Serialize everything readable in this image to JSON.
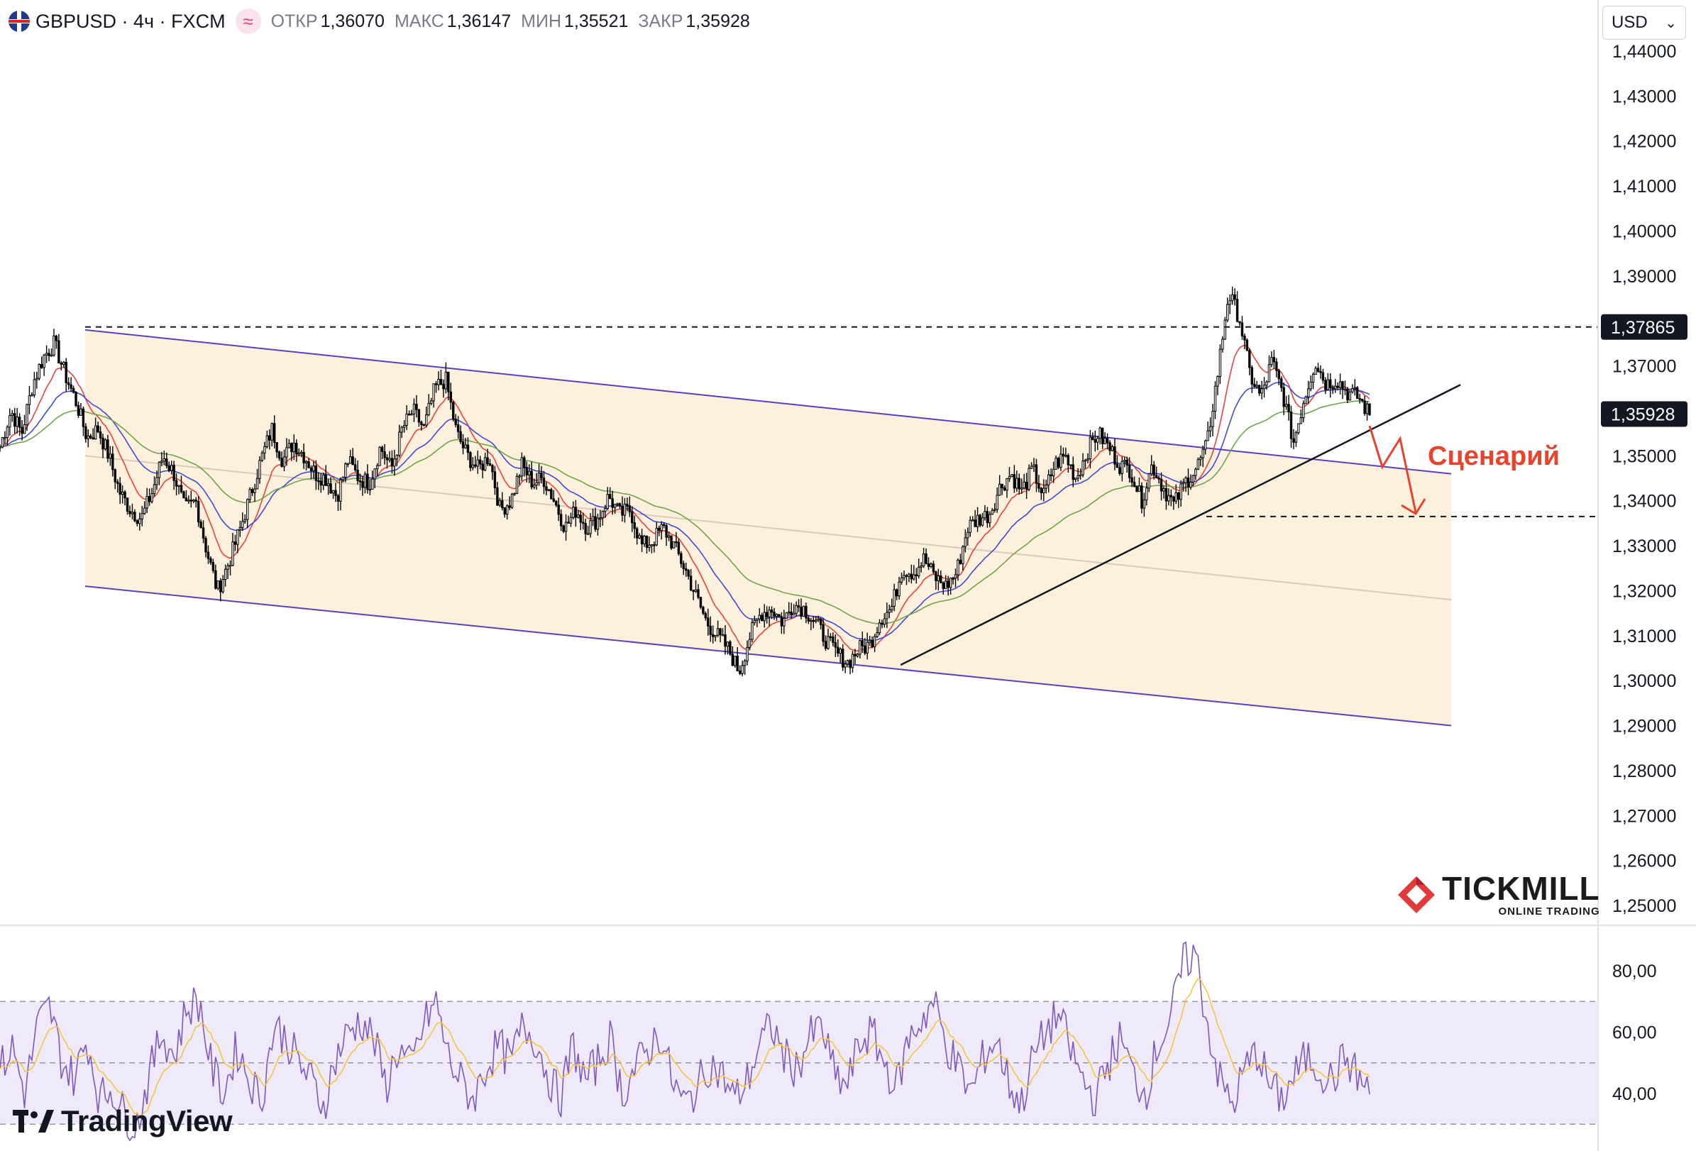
{
  "header": {
    "symbol": "GBPUSD · 4ч · FXCM",
    "approx_icon": "≈",
    "open_label": "ОТКР",
    "open_value": "1,36070",
    "high_label": "МАКС",
    "high_value": "1,36147",
    "low_label": "МИН",
    "low_value": "1,35521",
    "close_label": "ЗАКР",
    "close_value": "1,35928"
  },
  "currency_select": {
    "value": "USD"
  },
  "annotation_text": "Сценарий",
  "brand": {
    "tickmill_name": "TICKMILL",
    "tickmill_sub": "ONLINE TRADING",
    "tradingview": "TradingView"
  },
  "colors": {
    "candles": "#000000",
    "channel_line": "#5b3fbf",
    "channel_fill": "#fdf0dc",
    "ma_fast": "#e8433b",
    "ma_mid": "#3f4bd8",
    "ma_slow": "#6ea64a",
    "rsi": "#7e57c2",
    "rsi_ma": "#f5c542",
    "rsi_band": "#efeaf9",
    "arrow": "#e8432c"
  },
  "chart_data": [
    {
      "type": "line",
      "subtype": "candlestick_4h",
      "title": "",
      "ylim": [
        1.245,
        1.445
      ],
      "y_ticks": [
        1.25,
        1.26,
        1.27,
        1.28,
        1.29,
        1.3,
        1.31,
        1.32,
        1.33,
        1.34,
        1.35,
        1.36,
        1.37,
        1.38,
        1.39,
        1.4,
        1.41,
        1.42,
        1.43,
        1.44
      ],
      "y_tick_labels": [
        "1,25000",
        "1,26000",
        "1,27000",
        "1,28000",
        "1,29000",
        "1,30000",
        "1,31000",
        "1,32000",
        "1,33000",
        "1,34000",
        "1,35000",
        "1,36000",
        "1,37000",
        "1,38000",
        "1,39000",
        "1,40000",
        "1,41000",
        "1,42000",
        "1,43000",
        "1,44000"
      ],
      "price_path": [
        1.352,
        1.36,
        1.355,
        1.366,
        1.372,
        1.375,
        1.368,
        1.362,
        1.354,
        1.356,
        1.35,
        1.342,
        1.338,
        1.336,
        1.342,
        1.35,
        1.346,
        1.338,
        1.34,
        1.329,
        1.32,
        1.326,
        1.333,
        1.341,
        1.349,
        1.356,
        1.349,
        1.353,
        1.35,
        1.346,
        1.345,
        1.341,
        1.349,
        1.345,
        1.344,
        1.352,
        1.347,
        1.356,
        1.36,
        1.356,
        1.365,
        1.367,
        1.355,
        1.35,
        1.347,
        1.35,
        1.338,
        1.34,
        1.348,
        1.344,
        1.345,
        1.34,
        1.334,
        1.338,
        1.334,
        1.336,
        1.341,
        1.337,
        1.338,
        1.33,
        1.331,
        1.334,
        1.33,
        1.325,
        1.319,
        1.313,
        1.31,
        1.307,
        1.302,
        1.31,
        1.315,
        1.316,
        1.313,
        1.317,
        1.316,
        1.313,
        1.309,
        1.306,
        1.304,
        1.307,
        1.308,
        1.314,
        1.316,
        1.325,
        1.324,
        1.327,
        1.323,
        1.321,
        1.324,
        1.334,
        1.336,
        1.337,
        1.343,
        1.346,
        1.342,
        1.347,
        1.341,
        1.348,
        1.35,
        1.345,
        1.351,
        1.355,
        1.352,
        1.348,
        1.347,
        1.34,
        1.348,
        1.343,
        1.339,
        1.344,
        1.347,
        1.352,
        1.368,
        1.386,
        1.381,
        1.368,
        1.363,
        1.371,
        1.364,
        1.353,
        1.363,
        1.371,
        1.366,
        1.367,
        1.364,
        1.363,
        1.359
      ],
      "last_price": 1.35928,
      "last_price_label": "1,35928",
      "level_price": 1.37865,
      "level_label": "1,37865",
      "support_level": 1.3365,
      "channel": {
        "upper": [
          [
            0.0,
            1.378
          ],
          [
            1.0,
            1.346
          ]
        ],
        "middle": [
          [
            0.0,
            1.35
          ],
          [
            1.0,
            1.318
          ]
        ],
        "lower": [
          [
            0.0,
            1.321
          ],
          [
            1.0,
            1.29
          ]
        ]
      },
      "trendline": [
        [
          0.597,
          1.3035
        ],
        [
          0.999,
          1.365
        ]
      ],
      "moving_averages": [
        "fast",
        "mid",
        "slow"
      ]
    },
    {
      "type": "line",
      "subtype": "rsi",
      "ylim": [
        20,
        95
      ],
      "y_ticks": [
        40,
        60,
        80
      ],
      "y_tick_labels": [
        "40,00",
        "60,00",
        "80,00"
      ],
      "band": [
        30,
        70
      ],
      "midline": 50,
      "values": [
        48,
        55,
        40,
        62,
        68,
        50,
        45,
        58,
        38,
        42,
        33,
        30,
        46,
        60,
        52,
        68,
        70,
        48,
        40,
        55,
        45,
        38,
        62,
        58,
        50,
        44,
        36,
        52,
        60,
        64,
        58,
        42,
        55,
        48,
        62,
        70,
        52,
        44,
        38,
        48,
        56,
        50,
        62,
        58,
        46,
        38,
        56,
        44,
        50,
        58,
        40,
        48,
        54,
        60,
        44,
        36,
        42,
        50,
        46,
        38,
        44,
        56,
        62,
        52,
        48,
        58,
        62,
        46,
        42,
        56,
        60,
        50,
        42,
        58,
        64,
        70,
        56,
        48,
        40,
        52,
        58,
        44,
        36,
        52,
        60,
        66,
        54,
        44,
        38,
        50,
        58,
        46,
        40,
        56,
        64,
        82,
        86,
        62,
        44,
        36,
        48,
        54,
        42,
        38,
        46,
        52,
        48,
        44,
        52,
        46,
        40
      ]
    }
  ]
}
